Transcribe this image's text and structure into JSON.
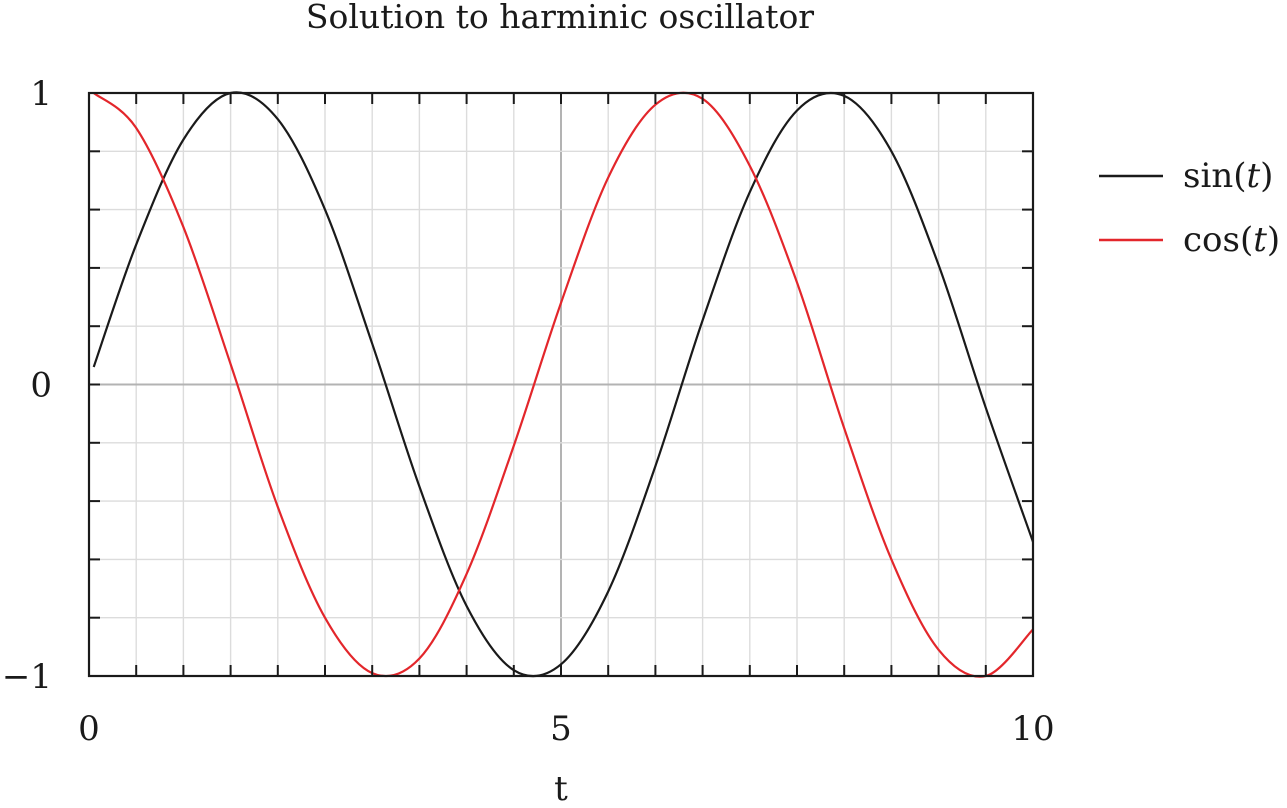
{
  "chart_data": {
    "type": "line",
    "title": "Solution to harminic oscillator",
    "xlabel": "t",
    "ylabel": "",
    "xlim": [
      0,
      10
    ],
    "ylim": [
      -1,
      1
    ],
    "x_ticks": [
      0,
      5,
      10
    ],
    "x_tick_labels": [
      "0",
      "5",
      "10"
    ],
    "y_ticks": [
      -1,
      0,
      1
    ],
    "y_tick_labels": [
      "−1",
      "0",
      "1"
    ],
    "x_minor_step": 0.5,
    "y_minor_step": 0.2,
    "grid": true,
    "legend_position": "right",
    "x": [
      0.05,
      0.5,
      1.0,
      1.5,
      2.0,
      2.5,
      3.0,
      3.5,
      4.0,
      4.5,
      5.0,
      5.5,
      6.0,
      6.5,
      7.0,
      7.5,
      8.0,
      8.5,
      9.0,
      9.5,
      10.0
    ],
    "series": [
      {
        "name": "sin(t)",
        "name_parts": {
          "func": "sin(",
          "var": "t",
          "close": ")"
        },
        "color": "#1a1a1a",
        "values": [
          0.06,
          0.48,
          0.84,
          1.0,
          0.91,
          0.6,
          0.14,
          -0.35,
          -0.76,
          -0.98,
          -0.96,
          -0.71,
          -0.28,
          0.22,
          0.66,
          0.94,
          0.99,
          0.8,
          0.41,
          -0.08,
          -0.54
        ]
      },
      {
        "name": "cos(t)",
        "name_parts": {
          "func": "cos(",
          "var": "t",
          "close": ")"
        },
        "color": "#e3262b",
        "values": [
          1.0,
          0.88,
          0.54,
          0.07,
          -0.42,
          -0.8,
          -0.99,
          -0.94,
          -0.65,
          -0.21,
          0.28,
          0.71,
          0.96,
          0.98,
          0.75,
          0.35,
          -0.15,
          -0.6,
          -0.91,
          -1.0,
          -0.84
        ]
      }
    ]
  }
}
